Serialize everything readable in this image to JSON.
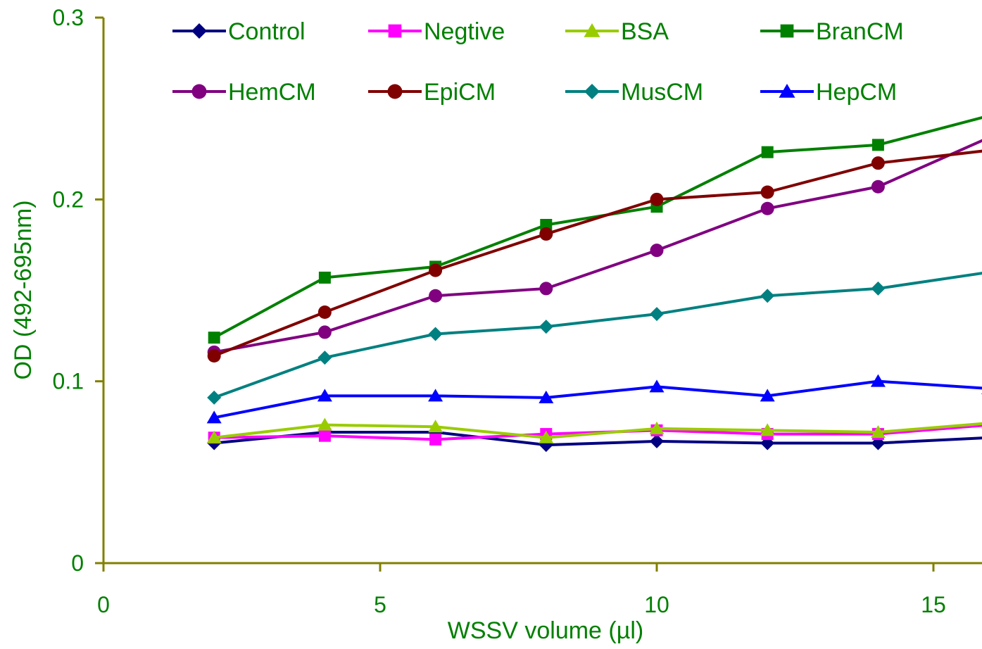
{
  "chart_data": {
    "type": "line",
    "title": "",
    "xlabel": "WSSV volume (µl)",
    "ylabel": "OD (492-695nm)",
    "xlim": [
      0,
      17
    ],
    "ylim": [
      0,
      0.3
    ],
    "xticks": [
      0,
      5,
      10,
      15
    ],
    "xtick_labels": [
      "0",
      "5",
      "10",
      "15"
    ],
    "yticks": [
      0,
      0.1,
      0.2,
      0.3
    ],
    "ytick_labels": [
      "0",
      "0.1",
      "0.2",
      "0.3"
    ],
    "grid": false,
    "legend_position": "top",
    "label_color": "#008000",
    "axis_color": "#808000",
    "x": [
      2,
      4,
      6,
      8,
      10,
      12,
      14,
      16
    ],
    "series": [
      {
        "name": "Control",
        "color": "#000080",
        "marker": "diamond",
        "values": [
          0.066,
          0.072,
          0.072,
          0.065,
          0.067,
          0.066,
          0.066,
          0.069
        ]
      },
      {
        "name": "Negtive",
        "color": "#ff00ff",
        "marker": "square",
        "values": [
          0.069,
          0.07,
          0.068,
          0.071,
          0.073,
          0.071,
          0.071,
          0.076
        ]
      },
      {
        "name": "BSA",
        "color": "#99cc00",
        "marker": "triangle",
        "values": [
          0.069,
          0.076,
          0.075,
          0.069,
          0.074,
          0.073,
          0.072,
          0.077
        ]
      },
      {
        "name": "BranCM",
        "color": "#008000",
        "marker": "square",
        "values": [
          0.124,
          0.157,
          0.163,
          0.186,
          0.196,
          0.226,
          0.23,
          0.246
        ]
      },
      {
        "name": "HemCM",
        "color": "#800080",
        "marker": "circle",
        "values": [
          0.116,
          0.127,
          0.147,
          0.151,
          0.172,
          0.195,
          0.207,
          0.234
        ]
      },
      {
        "name": "EpiCM",
        "color": "#800000",
        "marker": "circle",
        "values": [
          0.114,
          0.138,
          0.161,
          0.181,
          0.2,
          0.204,
          0.22,
          0.227
        ]
      },
      {
        "name": "MusCM",
        "color": "#008080",
        "marker": "diamond",
        "values": [
          0.091,
          0.113,
          0.126,
          0.13,
          0.137,
          0.147,
          0.151,
          0.16
        ]
      },
      {
        "name": "HepCM",
        "color": "#0000ff",
        "marker": "triangle",
        "values": [
          0.08,
          0.092,
          0.092,
          0.091,
          0.097,
          0.092,
          0.1,
          0.096
        ]
      }
    ]
  }
}
